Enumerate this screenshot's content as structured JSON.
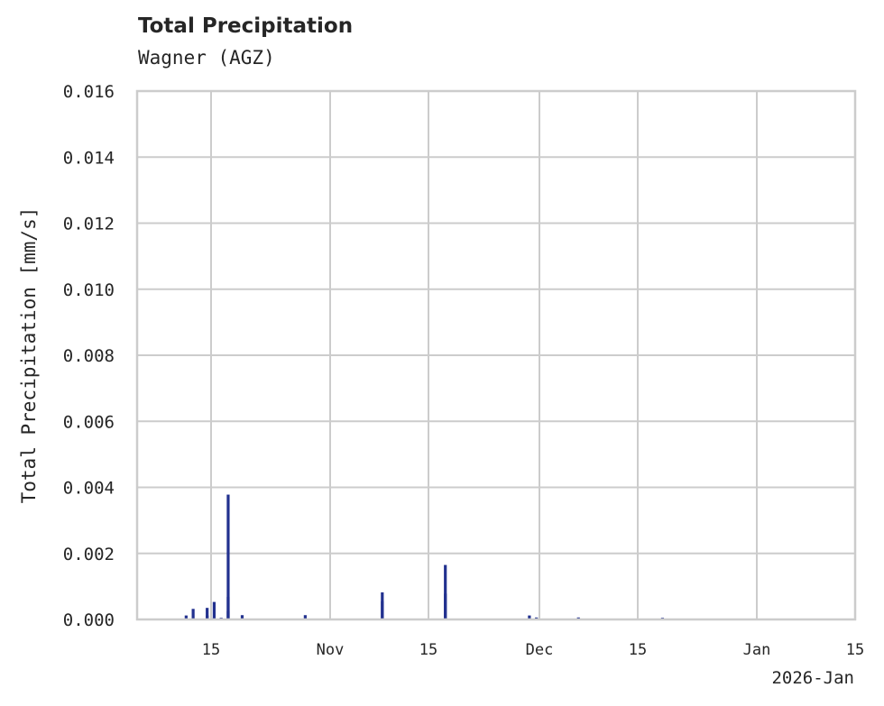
{
  "chart_data": {
    "type": "bar",
    "title": "Total Precipitation",
    "subtitle": "Wagner (AGZ)",
    "xlabel": "",
    "ylabel": "Total Precipitation [mm/s]",
    "ylim": [
      0,
      0.016
    ],
    "yticks": [
      "0.000",
      "0.002",
      "0.004",
      "0.006",
      "0.008",
      "0.010",
      "0.012",
      "0.014",
      "0.016"
    ],
    "xticks": [
      "15",
      "Nov",
      "15",
      "Dec",
      "15",
      "Jan",
      "15"
    ],
    "x_offset_label": "2026-Jan",
    "xlim": [
      "2025-10-04",
      "2026-01-15"
    ],
    "grid": true,
    "legend": null,
    "color": "#22318f",
    "series": [
      {
        "name": "Total Precipitation",
        "x": [
          "2025-10-11",
          "2025-10-12",
          "2025-10-14",
          "2025-10-14",
          "2025-10-15",
          "2025-10-15",
          "2025-10-16",
          "2025-10-17",
          "2025-10-17",
          "2025-10-17",
          "2025-10-19",
          "2025-10-28",
          "2025-11-08",
          "2025-11-08",
          "2025-11-17",
          "2025-11-17",
          "2025-11-29",
          "2025-11-30",
          "2025-12-06",
          "2025-12-18"
        ],
        "values": [
          0.00012,
          0.00032,
          0.00012,
          0.00035,
          0.00053,
          5e-05,
          5e-05,
          0.00378,
          0.00068,
          0.00025,
          0.00013,
          0.00013,
          0.00055,
          0.00082,
          0.00165,
          0.00078,
          0.00012,
          6e-05,
          6e-05,
          5e-05
        ]
      }
    ]
  }
}
